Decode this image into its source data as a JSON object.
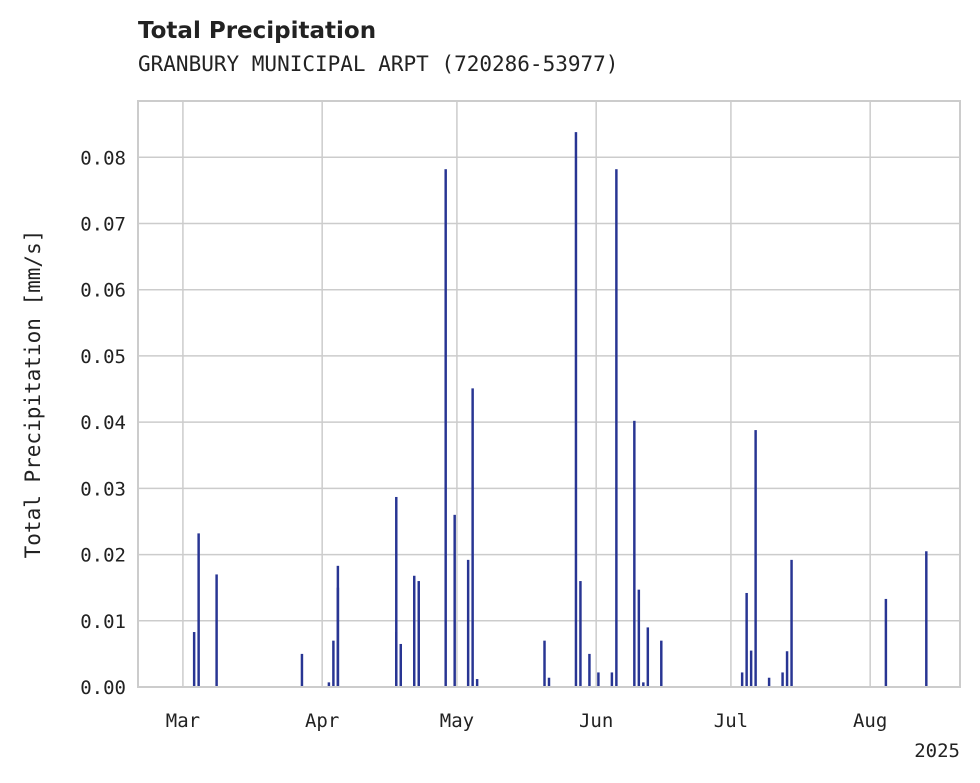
{
  "chart_data": {
    "type": "bar",
    "title": "Total Precipitation",
    "subtitle": "GRANBURY MUNICIPAL ARPT (720286-53977)",
    "xlabel": "",
    "ylabel": "Total Precipitation [mm/s]",
    "xlim": [
      "2025-02-19",
      "2025-08-21"
    ],
    "ylim": [
      0,
      0.0885
    ],
    "y_ticks": [
      0.0,
      0.01,
      0.02,
      0.03,
      0.04,
      0.05,
      0.06,
      0.07,
      0.08
    ],
    "y_tick_labels": [
      "0.00",
      "0.01",
      "0.02",
      "0.03",
      "0.04",
      "0.05",
      "0.06",
      "0.07",
      "0.08"
    ],
    "x_ticks": [
      "2025-03-01",
      "2025-04-01",
      "2025-05-01",
      "2025-06-01",
      "2025-07-01",
      "2025-08-01"
    ],
    "x_tick_labels": [
      "Mar",
      "Apr",
      "May",
      "Jun",
      "Jul",
      "Aug"
    ],
    "x_offset_label": "2025",
    "grid": true,
    "color": "#283593",
    "x": [
      "2025-03-03",
      "2025-03-04",
      "2025-03-08",
      "2025-03-27",
      "2025-04-02",
      "2025-04-03",
      "2025-04-04",
      "2025-04-04",
      "2025-04-17",
      "2025-04-17",
      "2025-04-18",
      "2025-04-21",
      "2025-04-22",
      "2025-04-28",
      "2025-04-30",
      "2025-05-03",
      "2025-05-04",
      "2025-05-05",
      "2025-05-20",
      "2025-05-21",
      "2025-05-27",
      "2025-05-28",
      "2025-05-30",
      "2025-06-01",
      "2025-06-04",
      "2025-06-05",
      "2025-06-09",
      "2025-06-10",
      "2025-06-11",
      "2025-06-12",
      "2025-06-15",
      "2025-07-03",
      "2025-07-04",
      "2025-07-05",
      "2025-07-06",
      "2025-07-09",
      "2025-07-12",
      "2025-07-13",
      "2025-07-14",
      "2025-08-04",
      "2025-08-13"
    ],
    "values": [
      0.0083,
      0.0232,
      0.017,
      0.005,
      0.0007,
      0.007,
      0.0183,
      0.015,
      0.0287,
      0.0083,
      0.0065,
      0.0168,
      0.016,
      0.0782,
      0.026,
      0.0192,
      0.0451,
      0.0012,
      0.007,
      0.0014,
      0.0838,
      0.016,
      0.005,
      0.0022,
      0.0022,
      0.0782,
      0.0402,
      0.0147,
      0.0007,
      0.009,
      0.007,
      0.0022,
      0.0142,
      0.0055,
      0.0388,
      0.0014,
      0.0022,
      0.0054,
      0.0192,
      0.0133,
      0.0205
    ]
  }
}
